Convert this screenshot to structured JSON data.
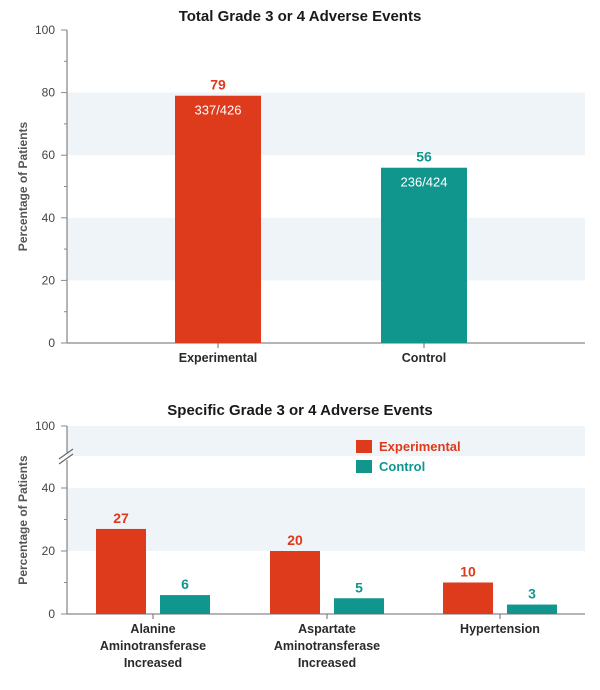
{
  "colors": {
    "experimental": "#de3a1c",
    "control": "#11968e",
    "band": "#eef4f8",
    "axis": "#6b6b6b",
    "grid_tick": "#8a8a8a"
  },
  "chart_data": [
    {
      "type": "bar",
      "title": "Total Grade 3 or 4 Adverse Events",
      "ylabel": "Percentage of Patients",
      "xlabel": "",
      "ylim": [
        0,
        100
      ],
      "yticks": [
        0,
        20,
        40,
        60,
        80,
        100
      ],
      "grid": "alternating horizontal bands",
      "categories": [
        "Experimental",
        "Control"
      ],
      "values": [
        79,
        56
      ],
      "value_labels": [
        "79",
        "56"
      ],
      "ratio_labels": [
        "337/426",
        "236/424"
      ]
    },
    {
      "type": "bar",
      "title": "Specific Grade 3 or 4 Adverse Events",
      "ylabel": "Percentage of Patients",
      "xlabel": "",
      "ylim": [
        0,
        100
      ],
      "axis_break": "between 40 and 100",
      "yticks": [
        0,
        20,
        40,
        100
      ],
      "grid": "alternating horizontal bands",
      "legend_position": "top-right",
      "categories": [
        [
          "Alanine",
          "Aminotransferase",
          "Increased"
        ],
        [
          "Aspartate",
          "Aminotransferase",
          "Increased"
        ],
        [
          "Hypertension"
        ]
      ],
      "series": [
        {
          "name": "Experimental",
          "values": [
            27,
            20,
            10
          ],
          "value_labels": [
            "27",
            "20",
            "10"
          ]
        },
        {
          "name": "Control",
          "values": [
            6,
            5,
            3
          ],
          "value_labels": [
            "6",
            "5",
            "3"
          ]
        }
      ]
    }
  ]
}
